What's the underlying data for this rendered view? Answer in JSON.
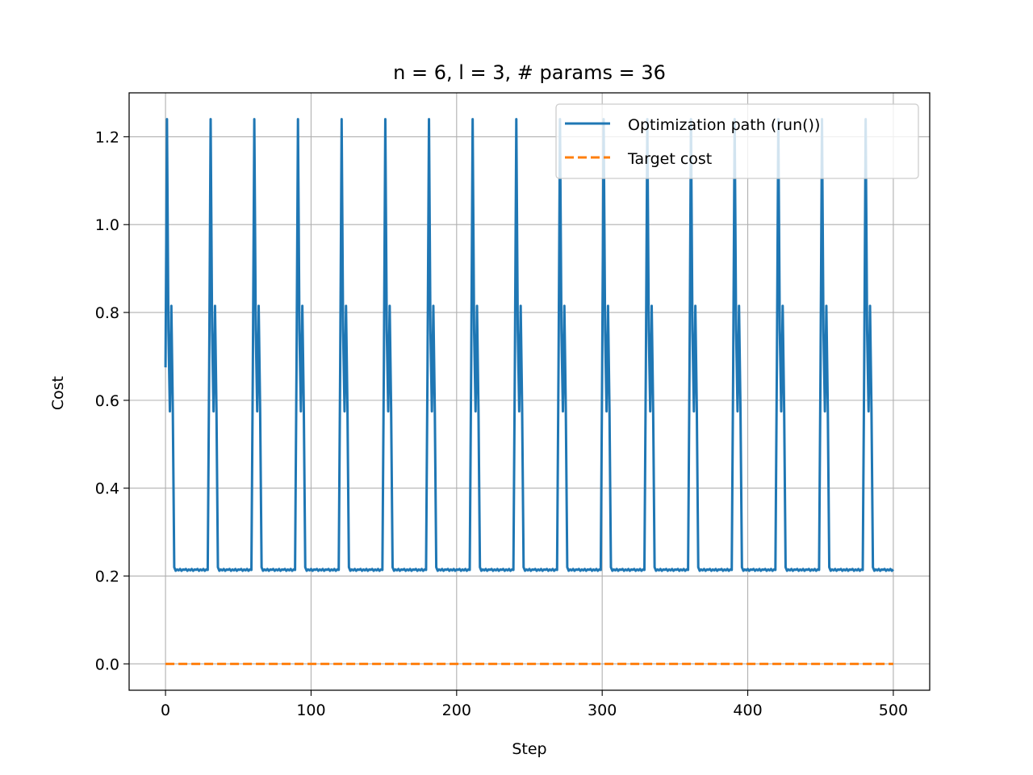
{
  "chart_data": {
    "type": "line",
    "title": "n = 6, l = 3, # params = 36",
    "xlabel": "Step",
    "ylabel": "Cost",
    "xlim": [
      -25,
      525
    ],
    "ylim": [
      -0.06,
      1.3
    ],
    "x_ticks": [
      0,
      100,
      200,
      300,
      400,
      500
    ],
    "x_tick_labels": [
      "0",
      "100",
      "200",
      "300",
      "400",
      "500"
    ],
    "y_ticks": [
      0.0,
      0.2,
      0.4,
      0.6,
      0.8,
      1.0,
      1.2
    ],
    "y_tick_labels": [
      "0.0",
      "0.2",
      "0.4",
      "0.6",
      "0.8",
      "1.0",
      "1.2"
    ],
    "grid": true,
    "legend_position": "top-right",
    "legend": [
      "Optimization path (run())",
      "Target cost"
    ],
    "series": [
      {
        "name": "Optimization path (run())",
        "color": "#1f77b4",
        "style": "solid",
        "cycle_period": 30,
        "cycle_start_steps": [
          0,
          30,
          60,
          90,
          120,
          150,
          180,
          210,
          240,
          270,
          300,
          330,
          360,
          390,
          420,
          450,
          480
        ],
        "cycle_pattern": [
          {
            "offset": 0,
            "y": 0.675
          },
          {
            "offset": 1,
            "y": 1.24
          },
          {
            "offset": 2,
            "y": 0.76
          },
          {
            "offset": 3,
            "y": 0.575
          },
          {
            "offset": 4,
            "y": 0.815
          },
          {
            "offset": 5,
            "y": 0.58
          },
          {
            "offset": 6,
            "y": 0.22
          },
          {
            "offset": 7,
            "y": 0.212
          },
          {
            "offset": 8,
            "y": 0.215
          },
          {
            "offset": 9,
            "y": 0.213
          },
          {
            "offset": 10,
            "y": 0.216
          },
          {
            "offset": 11,
            "y": 0.212
          },
          {
            "offset": 12,
            "y": 0.215
          },
          {
            "offset": 13,
            "y": 0.214
          },
          {
            "offset": 14,
            "y": 0.216
          },
          {
            "offset": 15,
            "y": 0.212
          },
          {
            "offset": 16,
            "y": 0.215
          },
          {
            "offset": 17,
            "y": 0.213
          },
          {
            "offset": 18,
            "y": 0.216
          },
          {
            "offset": 19,
            "y": 0.212
          },
          {
            "offset": 20,
            "y": 0.215
          },
          {
            "offset": 21,
            "y": 0.214
          },
          {
            "offset": 22,
            "y": 0.216
          },
          {
            "offset": 23,
            "y": 0.212
          },
          {
            "offset": 24,
            "y": 0.215
          },
          {
            "offset": 25,
            "y": 0.213
          },
          {
            "offset": 26,
            "y": 0.216
          },
          {
            "offset": 27,
            "y": 0.212
          },
          {
            "offset": 28,
            "y": 0.215
          },
          {
            "offset": 29,
            "y": 0.214
          }
        ],
        "last_step": 500,
        "last_value": 0.215
      },
      {
        "name": "Target cost",
        "color": "#ff7f0e",
        "style": "dashed",
        "x": [
          0,
          500
        ],
        "y": [
          0.0,
          0.0
        ]
      }
    ]
  }
}
